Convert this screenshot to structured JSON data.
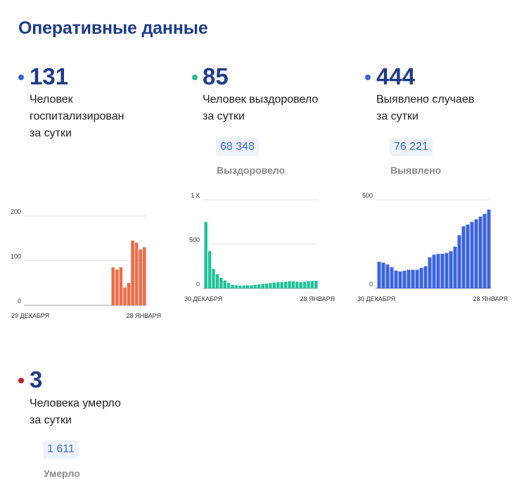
{
  "title": "Оперативные данные",
  "stats": [
    {
      "value": "131",
      "desc": [
        "Человек",
        "госпитализирован",
        "за сутки"
      ],
      "dot_color": "#3b63d9"
    },
    {
      "value": "85",
      "desc": [
        "Человек выздоровело",
        "за сутки"
      ],
      "dot_color": "#1fbf9a",
      "total": "68 348",
      "total_label": "Выздоровело"
    },
    {
      "value": "444",
      "desc": [
        "Выявлено случаев",
        "за сутки"
      ],
      "dot_color": "#3b63d9",
      "total": "76 221",
      "total_label": "Выявлено"
    },
    {
      "value": "3",
      "desc": [
        "Человека умерло",
        "за сутки"
      ],
      "dot_color": "#c41e2a",
      "total": "1 611",
      "total_label": "Умерло"
    }
  ],
  "chart_data": [
    {
      "type": "bar",
      "color": "#f26b45",
      "grid": true,
      "ylim": [
        0,
        200
      ],
      "yticks": [
        "0",
        "100",
        "200"
      ],
      "x_start_label": "29 ДЕКАБРЯ",
      "x_end_label": "28 ЯНВАРЯ",
      "values": [
        0,
        0,
        0,
        0,
        0,
        0,
        0,
        0,
        0,
        0,
        0,
        0,
        0,
        0,
        0,
        0,
        0,
        0,
        0,
        0,
        0,
        0,
        0,
        0,
        85,
        80,
        85,
        40,
        50,
        145,
        140,
        125,
        130
      ]
    },
    {
      "type": "bar",
      "color": "#1fc29a",
      "grid": true,
      "ylim": [
        0,
        1000
      ],
      "yticks": [
        "0",
        "500",
        "1 К"
      ],
      "x_start_label": "30 ДЕКАБРЯ",
      "x_end_label": "28 ЯНВАРЯ",
      "values": [
        750,
        420,
        220,
        160,
        120,
        90,
        60,
        40,
        35,
        30,
        30,
        35,
        35,
        40,
        45,
        50,
        55,
        60,
        65,
        70,
        70,
        75,
        80,
        80,
        75,
        70,
        75,
        80,
        85,
        85
      ]
    },
    {
      "type": "bar",
      "color": "#3b63e0",
      "grid": true,
      "ylim": [
        0,
        500
      ],
      "yticks": [
        "0",
        "500"
      ],
      "x_start_label": "30 ДЕКАБРЯ",
      "x_end_label": "28 ЯНВАРЯ",
      "values": [
        150,
        145,
        135,
        120,
        100,
        95,
        100,
        105,
        105,
        105,
        115,
        125,
        175,
        190,
        195,
        195,
        200,
        210,
        235,
        300,
        350,
        360,
        375,
        390,
        405,
        420,
        445
      ]
    }
  ]
}
